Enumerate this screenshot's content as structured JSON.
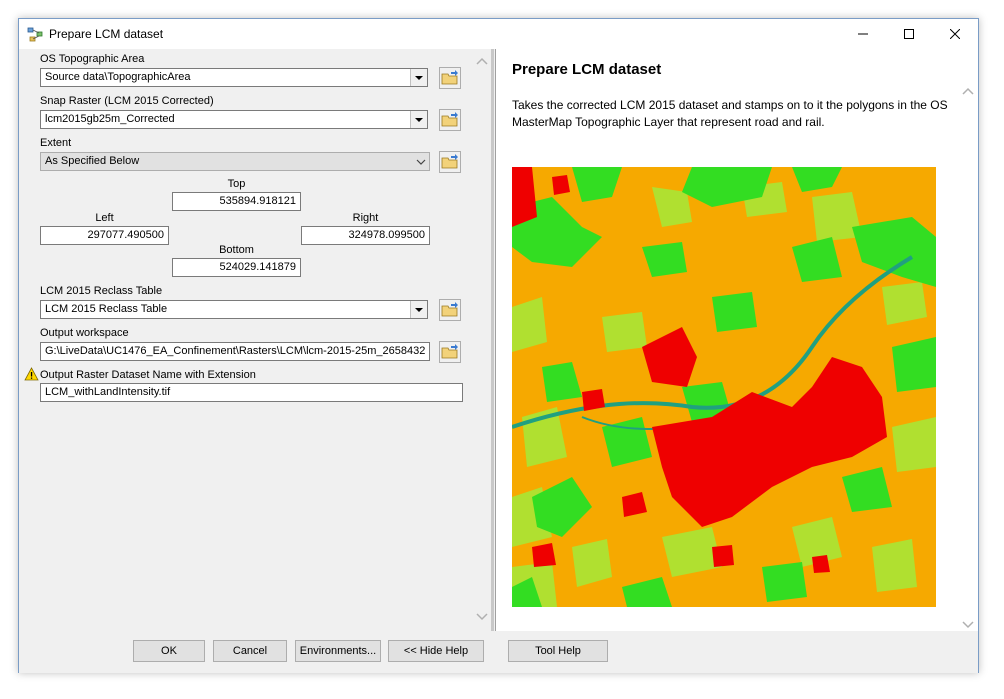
{
  "window": {
    "title": "Prepare LCM dataset"
  },
  "form": {
    "os_topo": {
      "label": "OS Topographic Area",
      "value": "Source data\\TopographicArea"
    },
    "snap_raster": {
      "label": "Snap Raster (LCM 2015 Corrected)",
      "value": "lcm2015gb25m_Corrected"
    },
    "extent": {
      "label": "Extent",
      "value": "As Specified Below",
      "top_label": "Top",
      "top": "535894.918121",
      "left_label": "Left",
      "left": "297077.490500",
      "right_label": "Right",
      "right": "324978.099500",
      "bottom_label": "Bottom",
      "bottom": "524029.141879"
    },
    "reclass": {
      "label": "LCM 2015 Reclass Table",
      "value": "LCM 2015 Reclass Table"
    },
    "workspace": {
      "label": "Output workspace",
      "value": "G:\\LiveData\\UC1476_EA_Confinement\\Rasters\\LCM\\lcm-2015-25m_2658432"
    },
    "output_name": {
      "label": "Output Raster Dataset Name with Extension",
      "value": "LCM_withLandIntensity.tif"
    }
  },
  "help": {
    "title": "Prepare LCM dataset",
    "body": "Takes the corrected LCM 2015 dataset and stamps on to it the polygons in the OS MasterMap Topographic Layer that represent road and rail."
  },
  "buttons": {
    "ok": "OK",
    "cancel": "Cancel",
    "environments": "Environments...",
    "hide_help": "<< Hide Help",
    "tool_help": "Tool Help"
  },
  "colors": {
    "map_base": "#f6a900",
    "map_urban": "#ef0000",
    "map_grass": "#33dd22",
    "map_light_green": "#b0e030",
    "map_water": "#20a080"
  }
}
